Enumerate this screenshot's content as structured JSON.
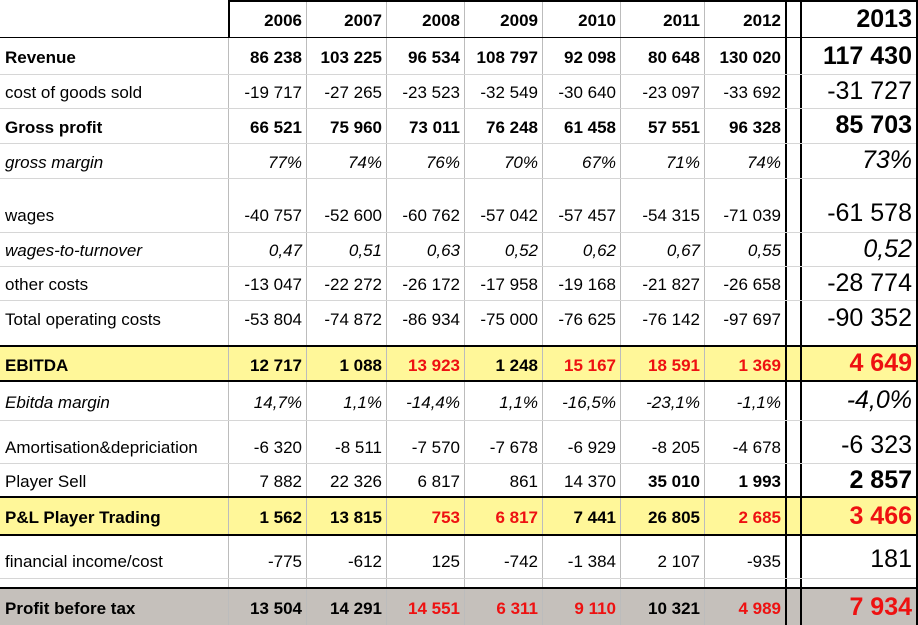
{
  "columns": [
    "2006",
    "2007",
    "2008",
    "2009",
    "2010",
    "2011",
    "2012",
    "2013"
  ],
  "rows": [
    {
      "key": "revenue",
      "label": "Revenue",
      "style": "bold",
      "values": [
        "86 238",
        "103 225",
        "96 534",
        "108 797",
        "92 098",
        "80 648",
        "130 020",
        "117 430"
      ]
    },
    {
      "key": "cogs",
      "label": "cost of goods sold",
      "style": "normal",
      "values": [
        "-19 717",
        "-27 265",
        "-23 523",
        "-32 549",
        "-30 640",
        "-23 097",
        "-33 692",
        "-31 727"
      ]
    },
    {
      "key": "gross_profit",
      "label": "Gross profit",
      "style": "bold",
      "values": [
        "66 521",
        "75 960",
        "73 011",
        "76 248",
        "61 458",
        "57 551",
        "96 328",
        "85 703"
      ]
    },
    {
      "key": "gross_margin",
      "label": "gross margin",
      "style": "italic",
      "values": [
        "77%",
        "74%",
        "76%",
        "70%",
        "67%",
        "71%",
        "74%",
        "73%"
      ]
    },
    {
      "key": "wages",
      "label": "wages",
      "style": "normal",
      "values": [
        "-40 757",
        "-52 600",
        "-60 762",
        "-57 042",
        "-57 457",
        "-54 315",
        "-71 039",
        "-61 578"
      ]
    },
    {
      "key": "wages_to_turnover",
      "label": "wages-to-turnover",
      "style": "italic",
      "values": [
        "0,47",
        "0,51",
        "0,63",
        "0,52",
        "0,62",
        "0,67",
        "0,55",
        "0,52"
      ]
    },
    {
      "key": "other_costs",
      "label": "other costs",
      "style": "normal",
      "values": [
        "-13 047",
        "-22 272",
        "-26 172",
        "-17 958",
        "-19 168",
        "-21 827",
        "-26 658",
        "-28 774"
      ]
    },
    {
      "key": "total_opex",
      "label": "Total operating costs",
      "style": "normal",
      "values": [
        "-53 804",
        "-74 872",
        "-86 934",
        "-75 000",
        "-76 625",
        "-76 142",
        "-97 697",
        "-90 352"
      ]
    },
    {
      "key": "ebitda",
      "label": "EBITDA",
      "style": "bold",
      "highlight": "yellow",
      "red": [
        false,
        false,
        true,
        false,
        true,
        true,
        true,
        true
      ],
      "values": [
        "12 717",
        "1 088",
        "13 923",
        "1 248",
        "15 167",
        "18 591",
        "1 369",
        "4 649"
      ]
    },
    {
      "key": "ebitda_margin",
      "label": "Ebitda margin",
      "style": "italic",
      "values": [
        "14,7%",
        "1,1%",
        "-14,4%",
        "1,1%",
        "-16,5%",
        "-23,1%",
        "-1,1%",
        "-4,0%"
      ]
    },
    {
      "key": "amortisation",
      "label": "Amortisation&depriciation",
      "style": "normal",
      "values": [
        "-6 320",
        "-8 511",
        "-7 570",
        "-7 678",
        "-6 929",
        "-8 205",
        "-4 678",
        "-6 323"
      ]
    },
    {
      "key": "player_sell",
      "label": "Player Sell",
      "style": "normal",
      "bold_cols": [
        false,
        false,
        false,
        false,
        false,
        true,
        true,
        true
      ],
      "values": [
        "7 882",
        "22 326",
        "6 817",
        "861",
        "14 370",
        "35 010",
        "1 993",
        "2 857"
      ]
    },
    {
      "key": "pl_player_trading",
      "label": "P&L Player Trading",
      "style": "bold",
      "highlight": "yellow",
      "red": [
        false,
        false,
        true,
        true,
        false,
        false,
        true,
        true
      ],
      "values": [
        "1 562",
        "13 815",
        "753",
        "6 817",
        "7 441",
        "26 805",
        "2 685",
        "3 466"
      ]
    },
    {
      "key": "financial",
      "label": "financial income/cost",
      "style": "normal",
      "values": [
        "-775",
        "-612",
        "125",
        "-742",
        "-1 384",
        "2 107",
        "-935",
        "181"
      ]
    },
    {
      "key": "pbt",
      "label": "Profit before tax",
      "style": "bold",
      "highlight": "gray",
      "red": [
        false,
        false,
        true,
        true,
        true,
        false,
        true,
        true
      ],
      "values": [
        "13 504",
        "14 291",
        "14 551",
        "6 311",
        "9 110",
        "10 321",
        "4 989",
        "7 934"
      ]
    }
  ],
  "colors": {
    "highlight_yellow": "#fff799",
    "highlight_gray": "#c5c0bb",
    "negative_red": "#ee1111"
  }
}
